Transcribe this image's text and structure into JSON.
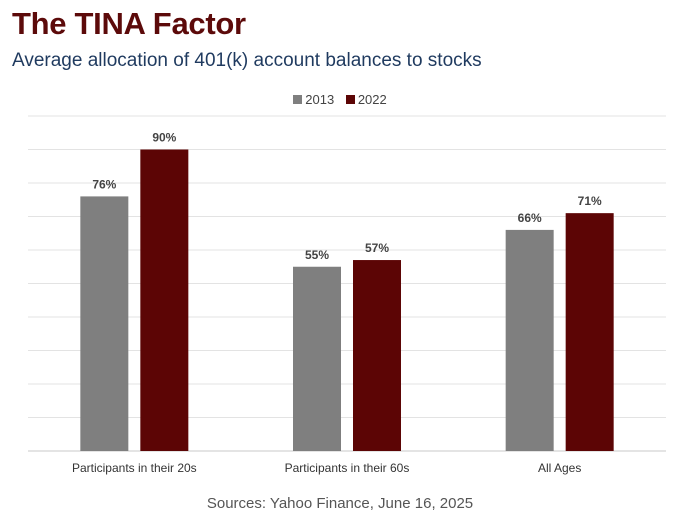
{
  "header": {
    "title": "The TINA Factor",
    "subtitle": "Average allocation of 401(k) account balances to stocks"
  },
  "footer": {
    "source": "Sources: Yahoo Finance, June 16, 2025"
  },
  "chart_data": {
    "type": "bar",
    "categories": [
      "Participants in their 20s",
      "Participants in their 60s",
      "All Ages"
    ],
    "series": [
      {
        "name": "2013",
        "values": [
          76,
          55,
          66
        ],
        "labels": [
          "76%",
          "55%",
          "66%"
        ],
        "color": "#7f7f7f"
      },
      {
        "name": "2022",
        "values": [
          90,
          57,
          71
        ],
        "labels": [
          "90%",
          "57%",
          "71%"
        ],
        "color": "#5c0505"
      }
    ],
    "ylim": [
      0,
      100
    ],
    "grid": true,
    "legend_position": "top-center",
    "xlabel": "",
    "ylabel": ""
  }
}
